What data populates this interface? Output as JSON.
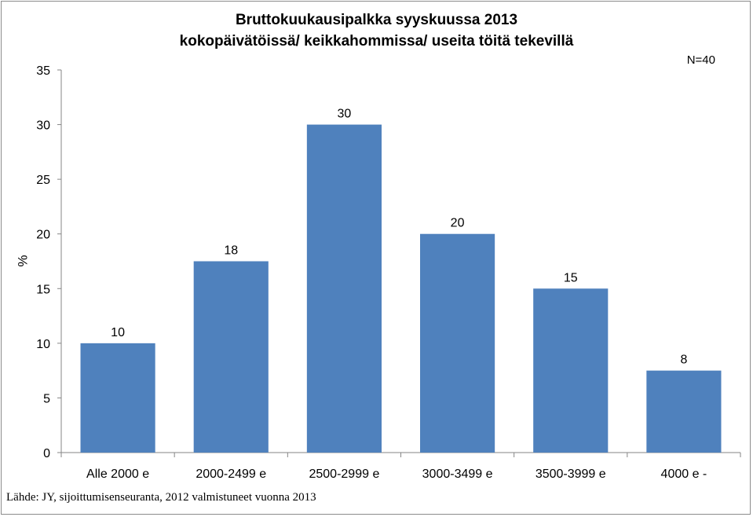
{
  "chart_data": {
    "type": "bar",
    "title": "Bruttokuukausipalkka syyskuussa 2013",
    "subtitle": "kokopäivätöissä/ keikkahommissa/ useita töitä tekevillä",
    "ylabel": "%",
    "xlabel": "",
    "note": "N=40",
    "source": "Lähde: JY, sijoittumisenseuranta, 2012 valmistuneet vuonna 2013",
    "categories": [
      "Alle 2000 e",
      "2000-2499 e",
      "2500-2999 e",
      "3000-3499 e",
      "3500-3999 e",
      "4000 e -"
    ],
    "values": [
      10,
      17.5,
      30,
      20,
      15,
      7.5
    ],
    "data_labels": [
      "10",
      "18",
      "30",
      "20",
      "15",
      "8"
    ],
    "ylim": [
      0,
      35
    ],
    "yticks": [
      0,
      5,
      10,
      15,
      20,
      25,
      30,
      35
    ],
    "grid": false,
    "legend": "none",
    "bar_color": "#4f81bd"
  }
}
